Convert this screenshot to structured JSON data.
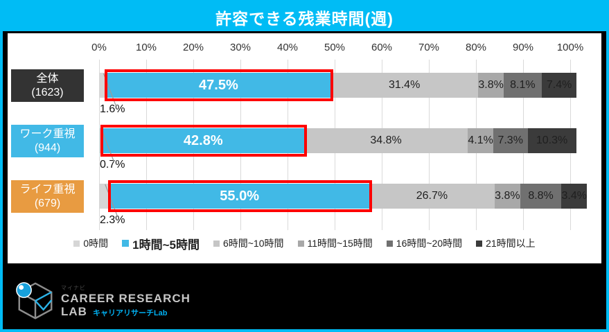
{
  "title": "許容できる残業時間(週)",
  "colors": {
    "frame": "#00BCF5",
    "bar_blue": "#41B9E6",
    "highlight_red": "#FE0000",
    "orange": "#E89B41",
    "dark_label": "#333333"
  },
  "axis": {
    "ticks": [
      "0%",
      "10%",
      "20%",
      "30%",
      "40%",
      "50%",
      "60%",
      "70%",
      "80%",
      "90%",
      "100%"
    ]
  },
  "chart_data": {
    "type": "bar",
    "stacked": true,
    "orientation": "horizontal",
    "title": "許容できる残業時間(週)",
    "xlim": [
      0,
      100
    ],
    "grid": true,
    "legend_position": "bottom",
    "categories": [
      {
        "label": "全体",
        "count": "(1623)",
        "color": "#333333"
      },
      {
        "label": "ワーク重視",
        "count": "(944)",
        "color": "#41B9E6"
      },
      {
        "label": "ライフ重視",
        "count": "(679)",
        "color": "#E89B41"
      }
    ],
    "series": [
      {
        "name": "0時間",
        "color": "#D6D6D6",
        "values": [
          1.6,
          0.7,
          2.3
        ]
      },
      {
        "name": "1時間~5時間",
        "color": "#41B9E6",
        "values": [
          47.5,
          42.8,
          55.0
        ]
      },
      {
        "name": "6時間~10時間",
        "color": "#C6C6C6",
        "values": [
          31.4,
          34.8,
          26.7
        ]
      },
      {
        "name": "11時間~15時間",
        "color": "#A8A8A8",
        "values": [
          3.8,
          4.1,
          3.8
        ]
      },
      {
        "name": "16時間~20時間",
        "color": "#707070",
        "values": [
          8.1,
          7.3,
          8.8
        ]
      },
      {
        "name": "21時間以上",
        "color": "#3B3B3B",
        "values": [
          7.4,
          10.3,
          3.4
        ]
      }
    ],
    "highlighted_series_index": 1
  },
  "footer": {
    "logo_tiny": "マイナビ",
    "logo_line1": "CAREER RESEARCH",
    "logo_line2": "LAB",
    "logo_sub": "キャリアリサーチLab"
  }
}
